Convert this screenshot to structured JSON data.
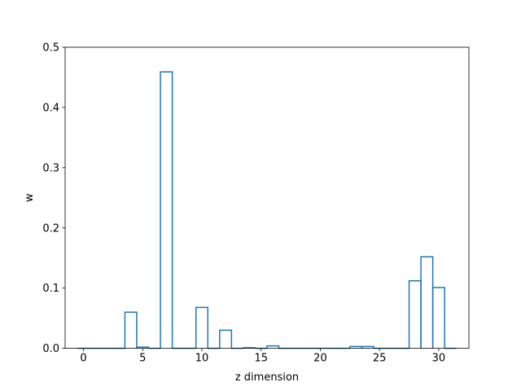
{
  "chart_data": {
    "type": "bar",
    "style": "step",
    "title": "",
    "xlabel": "z dimension",
    "ylabel": "w",
    "xlim": [
      -1.55,
      32.55
    ],
    "ylim": [
      0,
      0.5
    ],
    "grid": false,
    "xticks": [
      0,
      5,
      10,
      15,
      20,
      25,
      30
    ],
    "xtick_labels": [
      "0",
      "5",
      "10",
      "15",
      "20",
      "25",
      "30"
    ],
    "yticks": [
      0.0,
      0.1,
      0.2,
      0.3,
      0.4,
      0.5
    ],
    "ytick_labels": [
      "0.0",
      "0.1",
      "0.2",
      "0.3",
      "0.4",
      "0.5"
    ],
    "line_color": "#1f77b4",
    "x": [
      0,
      1,
      2,
      3,
      4,
      5,
      6,
      7,
      8,
      9,
      10,
      11,
      12,
      13,
      14,
      15,
      16,
      17,
      18,
      19,
      20,
      21,
      22,
      23,
      24,
      25,
      26,
      27,
      28,
      29,
      30,
      31
    ],
    "values": [
      0.0,
      0.0,
      0.0,
      0.0,
      0.06,
      0.002,
      0.0,
      0.459,
      0.0,
      0.0,
      0.068,
      0.0,
      0.03,
      0.0,
      0.001,
      0.0,
      0.004,
      0.0,
      0.0,
      0.0,
      0.0,
      0.0,
      0.0,
      0.003,
      0.003,
      0.0,
      0.0,
      0.0,
      0.112,
      0.152,
      0.101,
      0.0
    ]
  }
}
